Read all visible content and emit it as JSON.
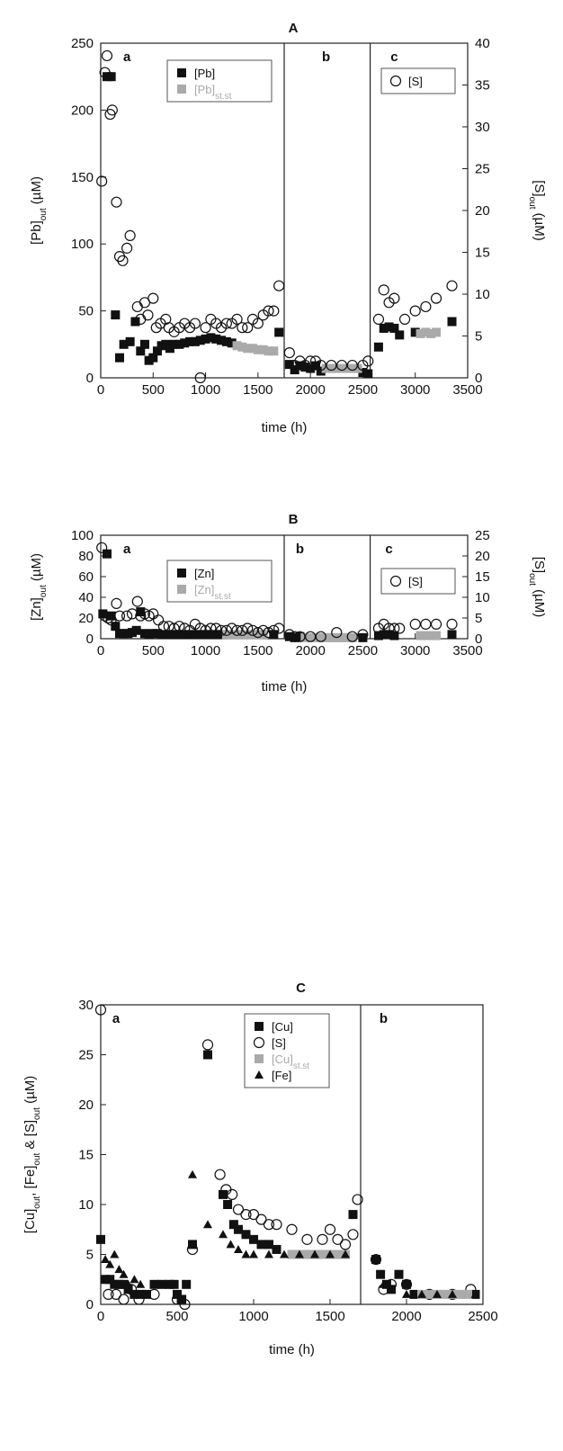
{
  "chart_data": [
    {
      "type": "scatter",
      "title": "A",
      "xlabel": "time (h)",
      "xlim": [
        0,
        3500
      ],
      "xticks": [
        0,
        500,
        1000,
        1500,
        2000,
        2500,
        3000,
        3500
      ],
      "ylim": [
        0,
        250
      ],
      "yticks": [
        0,
        50,
        100,
        150,
        200,
        250
      ],
      "y2lim": [
        0,
        40
      ],
      "y2ticks": [
        0,
        5,
        10,
        15,
        20,
        25,
        30,
        35,
        40
      ],
      "ylabel": {
        "base": "[Pb]",
        "sub": "out",
        "unit": " (µM)"
      },
      "y2label": {
        "base": "[S]",
        "sub": "out",
        "unit": " (µM)"
      },
      "dividers": [
        1750,
        2570
      ],
      "sublabels": [
        {
          "text": "a",
          "x": 250
        },
        {
          "text": "b",
          "x": 2150
        },
        {
          "text": "c",
          "x": 2800
        }
      ],
      "legends": [
        {
          "position": "top-center",
          "items": [
            {
              "marker": "square",
              "color": "#111111",
              "text": "[Pb]",
              "sub": ""
            },
            {
              "marker": "square",
              "color": "#aaaaaa",
              "text": "[Pb]",
              "sub": "st.st"
            }
          ]
        },
        {
          "position": "top-right",
          "items": [
            {
              "marker": "circle",
              "color": "#111111",
              "text": "[S]",
              "sub": ""
            }
          ]
        }
      ],
      "series": [
        {
          "name": "[Pb]",
          "marker": "square",
          "color": "#111111",
          "axis": "left",
          "x": [
            60,
            100,
            140,
            180,
            220,
            280,
            330,
            380,
            420,
            460,
            500,
            540,
            580,
            620,
            660,
            700,
            750,
            800,
            850,
            900,
            950,
            1000,
            1050,
            1100,
            1150,
            1200,
            1250,
            1700,
            1800,
            1850,
            1900,
            1950,
            2000,
            2050,
            2100,
            2500,
            2550,
            2650,
            2700,
            2750,
            2800,
            2850,
            3000,
            3350
          ],
          "y": [
            225,
            225,
            47,
            15,
            25,
            27,
            42,
            20,
            25,
            13,
            15,
            20,
            24,
            25,
            22,
            25,
            25,
            26,
            27,
            27,
            28,
            29,
            30,
            29,
            28,
            27,
            26,
            34,
            10,
            6,
            9,
            8,
            7,
            9,
            5,
            4,
            3,
            23,
            37,
            38,
            37,
            32,
            34,
            42
          ]
        },
        {
          "name": "[Pb]st.st",
          "marker": "square",
          "color": "#aaaaaa",
          "axis": "left",
          "x": [
            1300,
            1350,
            1400,
            1450,
            1500,
            1550,
            1600,
            1650,
            2150,
            2200,
            2250,
            2300,
            2350,
            2400,
            2450,
            3050,
            3100,
            3150,
            3200
          ],
          "y": [
            24,
            23,
            22,
            22,
            21,
            21,
            20,
            20,
            7,
            7,
            7,
            7,
            7,
            7,
            7,
            33,
            34,
            33,
            34
          ]
        },
        {
          "name": "[S]",
          "marker": "circle",
          "color": "#111111",
          "axis": "right",
          "x": [
            10,
            40,
            60,
            90,
            110,
            150,
            180,
            210,
            250,
            280,
            350,
            380,
            420,
            450,
            500,
            530,
            570,
            620,
            650,
            700,
            750,
            800,
            850,
            900,
            950,
            1000,
            1050,
            1100,
            1150,
            1200,
            1250,
            1300,
            1350,
            1400,
            1450,
            1500,
            1550,
            1600,
            1650,
            1700,
            1800,
            1850,
            1900,
            1950,
            2000,
            2050,
            2100,
            2200,
            2300,
            2400,
            2500,
            2550,
            2650,
            2700,
            2750,
            2800,
            2900,
            3000,
            3100,
            3200,
            3350
          ],
          "y": [
            23.5,
            36.5,
            38.5,
            31.5,
            32,
            21,
            14.5,
            14,
            15.5,
            17,
            8.5,
            7,
            9,
            7.5,
            9.5,
            6,
            6.5,
            7,
            6,
            5.5,
            6,
            6.5,
            6,
            6.5,
            0,
            6,
            7,
            6.5,
            6,
            6.5,
            6.5,
            7,
            6,
            6,
            7,
            6.5,
            7.5,
            8,
            8,
            11,
            3,
            1.5,
            2,
            1.5,
            2,
            2,
            1.5,
            1.5,
            1.5,
            1.5,
            1.5,
            2,
            7,
            10.5,
            9,
            9.5,
            7,
            8,
            8.5,
            9.5,
            11
          ]
        }
      ]
    },
    {
      "type": "scatter",
      "title": "B",
      "xlabel": "time (h)",
      "xlim": [
        0,
        3500
      ],
      "xticks": [
        0,
        500,
        1000,
        1500,
        2000,
        2500,
        3000,
        3500
      ],
      "ylim": [
        0,
        100
      ],
      "yticks": [
        0,
        20,
        40,
        60,
        80,
        100
      ],
      "y2lim": [
        0,
        25
      ],
      "y2ticks": [
        0,
        5,
        10,
        15,
        20,
        25
      ],
      "ylabel": {
        "base": "[Zn]",
        "sub": "out",
        "unit": " (µM)"
      },
      "y2label": {
        "base": "[S]",
        "sub": "out",
        "unit": " (µM)"
      },
      "dividers": [
        1750,
        2570
      ],
      "sublabels": [
        {
          "text": "a",
          "x": 250
        },
        {
          "text": "b",
          "x": 1900
        },
        {
          "text": "c",
          "x": 2750
        }
      ],
      "legends": [
        {
          "position": "top-center",
          "items": [
            {
              "marker": "square",
              "color": "#111111",
              "text": "[Zn]",
              "sub": ""
            },
            {
              "marker": "square",
              "color": "#aaaaaa",
              "text": "[Zn]",
              "sub": "st.st"
            }
          ]
        },
        {
          "position": "top-right",
          "items": [
            {
              "marker": "circle",
              "color": "#111111",
              "text": "[S]",
              "sub": ""
            }
          ]
        }
      ],
      "series": [
        {
          "name": "[Zn]",
          "marker": "square",
          "color": "#111111",
          "axis": "left",
          "x": [
            20,
            60,
            100,
            140,
            180,
            220,
            260,
            300,
            340,
            380,
            420,
            460,
            500,
            540,
            580,
            620,
            660,
            700,
            750,
            800,
            850,
            900,
            950,
            1000,
            1050,
            1100,
            1150,
            1650,
            1800,
            1850,
            1900,
            2500,
            2650,
            2700,
            2750,
            2800,
            3350
          ],
          "y": [
            24,
            82,
            22,
            12,
            5,
            5,
            5,
            6,
            8,
            26,
            5,
            4,
            5,
            5,
            4,
            4,
            4,
            4,
            4,
            4,
            4,
            4,
            4,
            4,
            4,
            4,
            4,
            4,
            2,
            1,
            2,
            1,
            3,
            4,
            4,
            3,
            4
          ]
        },
        {
          "name": "[Zn]st.st",
          "marker": "square",
          "color": "#aaaaaa",
          "axis": "left",
          "x": [
            1200,
            1250,
            1300,
            1350,
            1400,
            1450,
            1500,
            1550,
            1950,
            2000,
            2050,
            2100,
            2150,
            2200,
            2250,
            2300,
            2350,
            2400,
            3050,
            3100,
            3150,
            3200
          ],
          "y": [
            4,
            4,
            4,
            4,
            4,
            4,
            4,
            4,
            1,
            1,
            1,
            1,
            1,
            1,
            1,
            1,
            1,
            1,
            3,
            3,
            3,
            3
          ]
        },
        {
          "name": "[S]",
          "marker": "circle",
          "color": "#111111",
          "axis": "right",
          "x": [
            10,
            40,
            70,
            100,
            150,
            180,
            250,
            300,
            350,
            380,
            420,
            460,
            500,
            550,
            600,
            650,
            700,
            750,
            800,
            850,
            900,
            950,
            1000,
            1050,
            1100,
            1150,
            1200,
            1250,
            1300,
            1350,
            1400,
            1450,
            1500,
            1550,
            1600,
            1650,
            1700,
            1800,
            1850,
            1900,
            2000,
            2100,
            2250,
            2400,
            2500,
            2650,
            2700,
            2750,
            2800,
            2850,
            3000,
            3100,
            3200,
            3350
          ],
          "y": [
            22,
            5.5,
            5,
            4.5,
            8.5,
            5.5,
            5.5,
            6,
            9,
            5.5,
            6,
            5.5,
            6,
            4.5,
            3,
            3,
            2.5,
            3,
            2.5,
            2,
            3.5,
            2.5,
            2,
            2.5,
            2.5,
            2,
            2,
            2.5,
            2,
            2,
            2.5,
            2,
            1.5,
            2,
            1.5,
            2,
            2.5,
            1,
            0.5,
            0.5,
            0.5,
            0.5,
            1.5,
            0.5,
            1,
            2.5,
            3.5,
            2.5,
            2.5,
            2.5,
            3.5,
            3.5,
            3.5,
            3.5
          ]
        }
      ]
    },
    {
      "type": "scatter",
      "title": "C",
      "xlabel": "time (h)",
      "xlim": [
        0,
        2500
      ],
      "xticks": [
        0,
        500,
        1000,
        1500,
        2000,
        2500
      ],
      "ylim": [
        0,
        30
      ],
      "yticks": [
        0,
        5,
        10,
        15,
        20,
        25,
        30
      ],
      "ylabel": {
        "base": "[Cu]",
        "sub": "out",
        "unit": "",
        "full": [
          [
            "[Cu]",
            "out"
          ],
          [
            ", [Fe]",
            "out"
          ],
          [
            " & [S]",
            "out"
          ],
          [
            " (µM)",
            ""
          ]
        ]
      },
      "dividers": [
        1700
      ],
      "sublabels": [
        {
          "text": "a",
          "x": 100
        },
        {
          "text": "b",
          "x": 1850
        }
      ],
      "legends": [
        {
          "position": "top-center",
          "items": [
            {
              "marker": "square",
              "color": "#111111",
              "text": "[Cu]",
              "sub": ""
            },
            {
              "marker": "circle",
              "color": "#111111",
              "text": "[S]",
              "sub": ""
            },
            {
              "marker": "square",
              "color": "#aaaaaa",
              "text": "[Cu]",
              "sub": "st.st"
            },
            {
              "marker": "triangle",
              "color": "#111111",
              "text": "[Fe]",
              "sub": ""
            }
          ]
        }
      ],
      "series": [
        {
          "name": "[Cu]",
          "marker": "square",
          "color": "#111111",
          "x": [
            0,
            30,
            60,
            90,
            120,
            150,
            180,
            220,
            260,
            300,
            350,
            400,
            450,
            480,
            500,
            530,
            560,
            600,
            700,
            800,
            830,
            870,
            900,
            950,
            1000,
            1050,
            1100,
            1150,
            1650,
            1800,
            1830,
            1870,
            1900,
            1950,
            2000,
            2050,
            2450
          ],
          "y": [
            6.5,
            2.5,
            2.5,
            2,
            2,
            2,
            1.5,
            1,
            1,
            1,
            2,
            2,
            2,
            2,
            1,
            0.5,
            2,
            6,
            25,
            11,
            10,
            8,
            7.5,
            7,
            6.5,
            6,
            6,
            5.5,
            9,
            4.5,
            3,
            2,
            1.5,
            3,
            2,
            1,
            1
          ]
        },
        {
          "name": "[S]",
          "marker": "circle",
          "color": "#111111",
          "x": [
            0,
            50,
            100,
            150,
            200,
            250,
            350,
            500,
            550,
            600,
            700,
            780,
            820,
            860,
            900,
            950,
            1000,
            1050,
            1100,
            1150,
            1250,
            1350,
            1450,
            1500,
            1550,
            1600,
            1650,
            1680,
            1800,
            1850,
            1900,
            2000,
            2150,
            2300,
            2420
          ],
          "y": [
            29.5,
            1,
            1,
            0.5,
            1.5,
            0.5,
            1,
            0.5,
            0,
            5.5,
            26,
            13,
            11.5,
            11,
            9.5,
            9,
            9,
            8.5,
            8,
            8,
            7.5,
            6.5,
            6.5,
            7.5,
            6.5,
            6,
            7,
            10.5,
            4.5,
            1.5,
            2,
            2,
            1,
            1,
            1.5
          ]
        },
        {
          "name": "[Cu]st.st",
          "marker": "square",
          "color": "#aaaaaa",
          "x": [
            1250,
            1300,
            1350,
            1400,
            1450,
            1500,
            1550,
            1600,
            2100,
            2150,
            2200,
            2250,
            2300,
            2350,
            2400
          ],
          "y": [
            5,
            5,
            5,
            5,
            5,
            5,
            5,
            5,
            1,
            1,
            1,
            1,
            1,
            1,
            1
          ]
        },
        {
          "name": "[Fe]",
          "marker": "triangle",
          "color": "#111111",
          "x": [
            30,
            60,
            90,
            120,
            150,
            180,
            220,
            260,
            600,
            700,
            800,
            850,
            900,
            950,
            1000,
            1100,
            1200,
            1300,
            1400,
            1500,
            1600,
            1850,
            1900,
            2000,
            2100,
            2200,
            2300,
            2450
          ],
          "y": [
            4.5,
            4,
            5,
            3.5,
            3,
            2,
            2.5,
            2,
            13,
            8,
            7,
            6,
            5.5,
            5,
            5,
            5,
            5,
            5,
            5,
            5,
            5,
            2,
            1.5,
            1,
            1,
            1,
            1,
            1
          ]
        }
      ]
    }
  ]
}
